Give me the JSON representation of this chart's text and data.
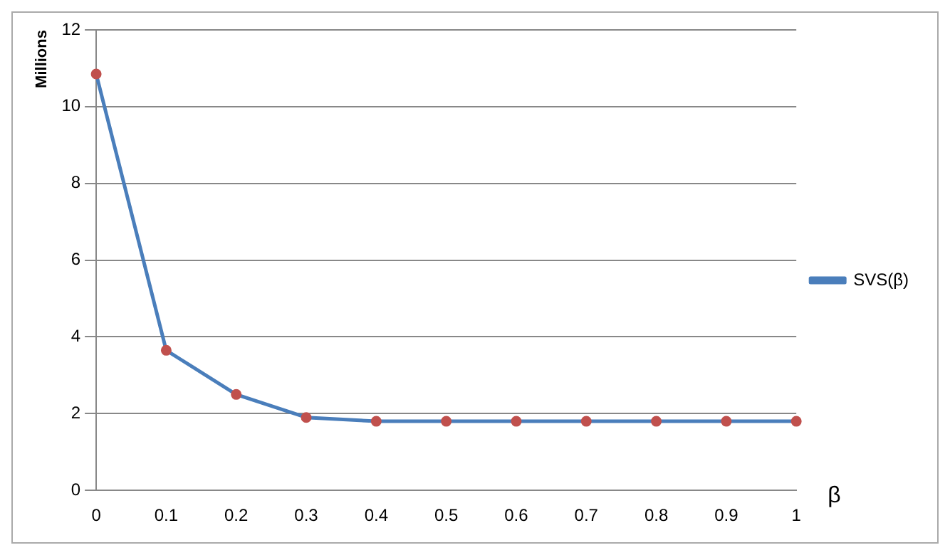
{
  "chart_data": {
    "type": "line",
    "ylabel": "Millions",
    "xlabel": "β",
    "categories": [
      "0",
      "0.1",
      "0.2",
      "0.3",
      "0.4",
      "0.5",
      "0.6",
      "0.7",
      "0.8",
      "0.9",
      "1"
    ],
    "series": [
      {
        "name": "SVS(β)",
        "color": "#4a7ebb",
        "values": [
          10.85,
          3.65,
          2.5,
          1.9,
          1.8,
          1.8,
          1.8,
          1.8,
          1.8,
          1.8,
          1.8
        ]
      }
    ],
    "ylim": [
      0,
      12
    ],
    "yticks": [
      0,
      2,
      4,
      6,
      8,
      10,
      12
    ],
    "grid": "y",
    "legend": "right",
    "marker": "circle"
  }
}
